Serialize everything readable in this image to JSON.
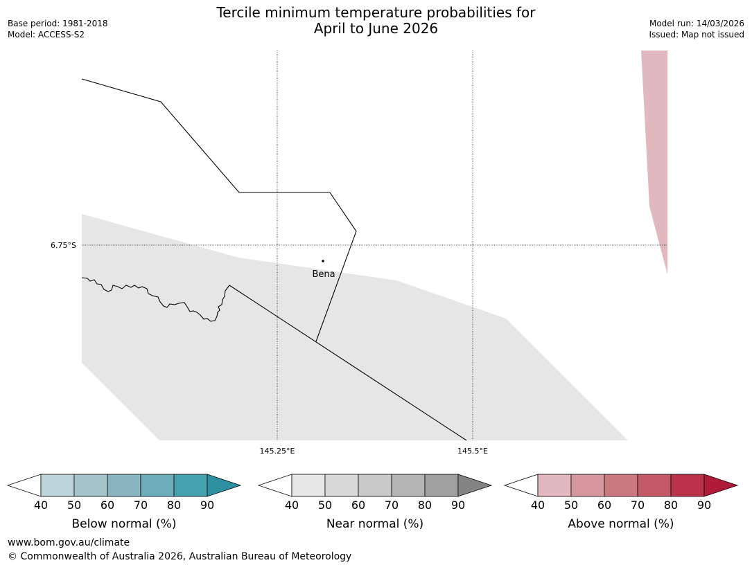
{
  "title": {
    "line1": "Tercile minimum temperature probabilities for",
    "line2": "April to June 2026"
  },
  "meta": {
    "base_period": "Base period: 1981-2018",
    "model": "Model: ACCESS-S2",
    "model_run": "Model run: 14/03/2026",
    "issued": "Issued: Map not issued"
  },
  "map": {
    "lat_label": "6.75°S",
    "lon_labels": [
      "145.25°E",
      "145.5°E"
    ],
    "place": "Bena",
    "colors": {
      "near_normal_fill": "#e6e6e6",
      "above_normal_fill": "#e0b8bd",
      "boundary": "#000000"
    }
  },
  "colorbars": [
    {
      "label": "Below normal (%)",
      "ticks": [
        "40",
        "50",
        "60",
        "70",
        "80",
        "90"
      ],
      "colors": [
        "#ffffff",
        "#bdd4da",
        "#a4c4c9",
        "#88b5c0",
        "#6badb9",
        "#46a1ae",
        "#2e91a1"
      ]
    },
    {
      "label": "Near normal (%)",
      "ticks": [
        "40",
        "50",
        "60",
        "70",
        "80",
        "90"
      ],
      "colors": [
        "#ffffff",
        "#e6e6e6",
        "#d8d8d8",
        "#c8c8c8",
        "#b4b4b4",
        "#a0a0a0",
        "#848484"
      ]
    },
    {
      "label": "Above normal (%)",
      "ticks": [
        "40",
        "50",
        "60",
        "70",
        "80",
        "90"
      ],
      "colors": [
        "#ffffff",
        "#e0b8bd",
        "#d5969d",
        "#cc7880",
        "#c45a67",
        "#bb334b",
        "#ae1c3a"
      ]
    }
  ],
  "footer": {
    "url": "www.bom.gov.au/climate",
    "copyright": "© Commonwealth of Australia 2026, Australian Bureau of Meteorology"
  }
}
